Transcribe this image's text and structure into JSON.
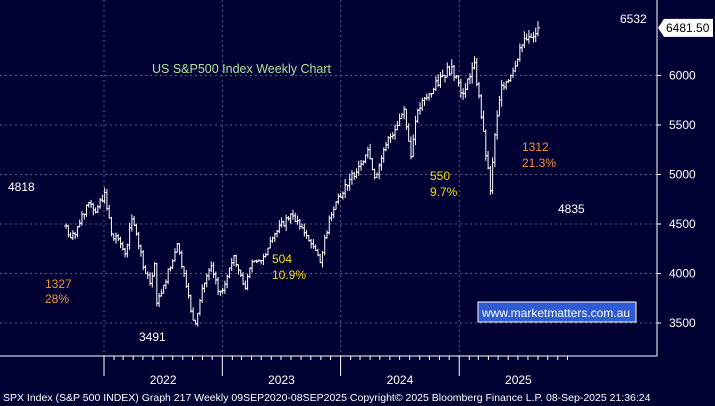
{
  "chart_data": {
    "type": "candlestick",
    "title": "US S&P500 Index Weekly Chart",
    "ylim": [
      3200,
      6700
    ],
    "yticks": [
      3500,
      4000,
      4500,
      5000,
      5500,
      6000
    ],
    "x_ticks": [
      "2022",
      "2023",
      "2024",
      "2025"
    ],
    "last_price_label": "6481.50",
    "colors": {
      "background": "#000033",
      "bars": "#ffffff",
      "title": "#a6e59a",
      "gain_annotation": "#f2e000",
      "loss_annotation": "#f4923a",
      "watermark": "#2f5bd3"
    },
    "annotations": [
      {
        "text": "4818",
        "color": "#ffffff"
      },
      {
        "text": "3491",
        "color": "#ffffff"
      },
      {
        "text": "1327",
        "color": "#f4923a"
      },
      {
        "text": "28%",
        "color": "#f4923a"
      },
      {
        "text": "504",
        "color": "#f2e000"
      },
      {
        "text": "10.9%",
        "color": "#f2e000"
      },
      {
        "text": "550",
        "color": "#f2e000"
      },
      {
        "text": "9.7%",
        "color": "#f2e000"
      },
      {
        "text": "1312",
        "color": "#f4923a"
      },
      {
        "text": "21.3%",
        "color": "#f4923a"
      },
      {
        "text": "4835",
        "color": "#ffffff"
      },
      {
        "text": "6532",
        "color": "#ffffff"
      }
    ],
    "watermark": "www.marketmatters.com.au",
    "footer": "SPX Index (S&P 500 INDEX) Graph 217  Weekly 09SEP2020-08SEP2025  Copyright© 2025 Bloomberg Finance L.P.  08-Sep-2025 21:36:24",
    "anchors": [
      [
        "2021-09-06",
        4480
      ],
      [
        "2021-09-20",
        4360
      ],
      [
        "2021-10-04",
        4390
      ],
      [
        "2021-10-25",
        4600
      ],
      [
        "2021-11-22",
        4700
      ],
      [
        "2021-12-06",
        4620
      ],
      [
        "2022-01-03",
        4818
      ],
      [
        "2022-01-24",
        4400
      ],
      [
        "2022-02-14",
        4350
      ],
      [
        "2022-03-07",
        4200
      ],
      [
        "2022-03-28",
        4550
      ],
      [
        "2022-04-11",
        4400
      ],
      [
        "2022-05-09",
        4000
      ],
      [
        "2022-05-23",
        3900
      ],
      [
        "2022-06-06",
        4100
      ],
      [
        "2022-06-13",
        3700
      ],
      [
        "2022-07-04",
        3880
      ],
      [
        "2022-08-15",
        4300
      ],
      [
        "2022-09-05",
        4000
      ],
      [
        "2022-09-26",
        3620
      ],
      [
        "2022-10-10",
        3491
      ],
      [
        "2022-10-31",
        3850
      ],
      [
        "2022-11-28",
        4080
      ],
      [
        "2022-12-19",
        3820
      ],
      [
        "2023-01-02",
        3830
      ],
      [
        "2023-02-06",
        4180
      ],
      [
        "2023-03-13",
        3850
      ],
      [
        "2023-04-03",
        4120
      ],
      [
        "2023-05-01",
        4130
      ],
      [
        "2023-06-12",
        4400
      ],
      [
        "2023-07-31",
        4600
      ],
      [
        "2023-09-04",
        4460
      ],
      [
        "2023-10-02",
        4300
      ],
      [
        "2023-10-30",
        4110
      ],
      [
        "2023-11-27",
        4560
      ],
      [
        "2023-12-25",
        4780
      ],
      [
        "2024-01-29",
        4950
      ],
      [
        "2024-03-25",
        5250
      ],
      [
        "2024-04-15",
        4970
      ],
      [
        "2024-05-20",
        5300
      ],
      [
        "2024-07-15",
        5660
      ],
      [
        "2024-08-05",
        5180
      ],
      [
        "2024-08-26",
        5650
      ],
      [
        "2024-10-14",
        5860
      ],
      [
        "2024-11-11",
        6000
      ],
      [
        "2024-12-09",
        6090
      ],
      [
        "2025-01-13",
        5820
      ],
      [
        "2025-02-17",
        6130
      ],
      [
        "2025-03-10",
        5580
      ],
      [
        "2025-04-07",
        4835
      ],
      [
        "2025-04-21",
        5400
      ],
      [
        "2025-05-12",
        5900
      ],
      [
        "2025-06-09",
        6000
      ],
      [
        "2025-07-07",
        6280
      ],
      [
        "2025-08-04",
        6390
      ],
      [
        "2025-09-01",
        6481.5
      ]
    ]
  }
}
